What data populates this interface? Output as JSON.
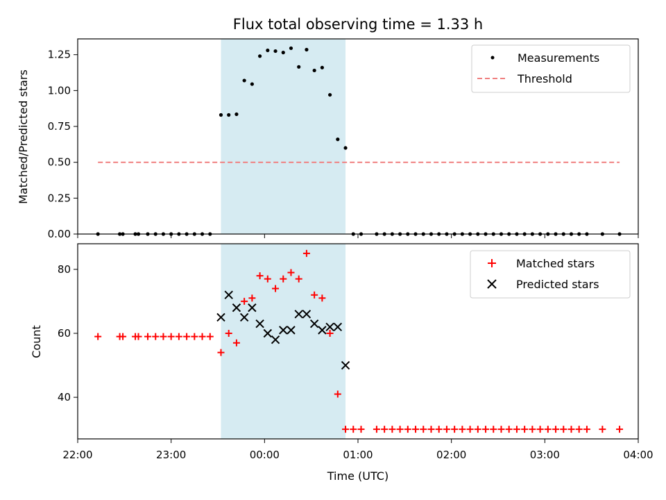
{
  "chart_data": [
    {
      "type": "scatter",
      "title": "Flux total observing time = 1.33 h",
      "xlabel": "",
      "ylabel": "Matched/Predicted stars",
      "xlim": [
        "22:00",
        "04:00"
      ],
      "ylim": [
        0,
        1.36
      ],
      "yticks": [
        "0.00",
        "0.25",
        "0.50",
        "0.75",
        "1.00",
        "1.25"
      ],
      "legend_position": "top-right",
      "highlight_span": {
        "start": "23:32",
        "end": "00:52",
        "color": "#add8e6"
      },
      "series": [
        {
          "name": "Measurements",
          "marker": "dot",
          "color": "#000000",
          "points": [
            [
              "22:13",
              0
            ],
            [
              "22:27",
              0
            ],
            [
              "22:29",
              0
            ],
            [
              "22:37",
              0
            ],
            [
              "22:39",
              0
            ],
            [
              "22:45",
              0
            ],
            [
              "22:50",
              0
            ],
            [
              "22:55",
              0
            ],
            [
              "23:00",
              0
            ],
            [
              "23:05",
              0
            ],
            [
              "23:10",
              0
            ],
            [
              "23:15",
              0
            ],
            [
              "23:20",
              0
            ],
            [
              "23:25",
              0
            ],
            [
              "23:32",
              0.83
            ],
            [
              "23:37",
              0.83
            ],
            [
              "23:42",
              0.835
            ],
            [
              "23:47",
              1.07
            ],
            [
              "23:52",
              1.045
            ],
            [
              "23:57",
              1.24
            ],
            [
              "00:02",
              1.28
            ],
            [
              "00:07",
              1.275
            ],
            [
              "00:12",
              1.265
            ],
            [
              "00:17",
              1.295
            ],
            [
              "00:22",
              1.165
            ],
            [
              "00:27",
              1.285
            ],
            [
              "00:32",
              1.14
            ],
            [
              "00:37",
              1.16
            ],
            [
              "00:42",
              0.97
            ],
            [
              "00:47",
              0.66
            ],
            [
              "00:52",
              0.6
            ],
            [
              "00:57",
              0
            ],
            [
              "01:02",
              0
            ],
            [
              "01:12",
              0
            ],
            [
              "01:17",
              0
            ],
            [
              "01:22",
              0
            ],
            [
              "01:27",
              0
            ],
            [
              "01:32",
              0
            ],
            [
              "01:37",
              0
            ],
            [
              "01:42",
              0
            ],
            [
              "01:47",
              0
            ],
            [
              "01:52",
              0
            ],
            [
              "01:57",
              0
            ],
            [
              "02:02",
              0
            ],
            [
              "02:07",
              0
            ],
            [
              "02:12",
              0
            ],
            [
              "02:17",
              0
            ],
            [
              "02:22",
              0
            ],
            [
              "02:27",
              0
            ],
            [
              "02:32",
              0
            ],
            [
              "02:37",
              0
            ],
            [
              "02:42",
              0
            ],
            [
              "02:47",
              0
            ],
            [
              "02:52",
              0
            ],
            [
              "02:57",
              0
            ],
            [
              "03:02",
              0
            ],
            [
              "03:07",
              0
            ],
            [
              "03:12",
              0
            ],
            [
              "03:17",
              0
            ],
            [
              "03:22",
              0
            ],
            [
              "03:27",
              0
            ],
            [
              "03:37",
              0
            ],
            [
              "03:48",
              0
            ]
          ]
        },
        {
          "name": "Threshold",
          "marker": "dashed-line",
          "color": "#f08080",
          "points": [
            [
              "22:13",
              0.5
            ],
            [
              "03:48",
              0.5
            ]
          ]
        }
      ]
    },
    {
      "type": "scatter",
      "title": "",
      "xlabel": "Time (UTC)",
      "ylabel": "Count",
      "xlim": [
        "22:00",
        "04:00"
      ],
      "ylim": [
        27,
        88
      ],
      "xticks": [
        "22:00",
        "23:00",
        "00:00",
        "01:00",
        "02:00",
        "03:00",
        "04:00"
      ],
      "yticks": [
        "40",
        "60",
        "80"
      ],
      "legend_position": "top-right",
      "highlight_span": {
        "start": "23:32",
        "end": "00:52",
        "color": "#add8e6"
      },
      "series": [
        {
          "name": "Matched stars",
          "marker": "plus",
          "color": "#ff0000",
          "points": [
            [
              "22:13",
              59
            ],
            [
              "22:27",
              59
            ],
            [
              "22:29",
              59
            ],
            [
              "22:37",
              59
            ],
            [
              "22:39",
              59
            ],
            [
              "22:45",
              59
            ],
            [
              "22:50",
              59
            ],
            [
              "22:55",
              59
            ],
            [
              "23:00",
              59
            ],
            [
              "23:05",
              59
            ],
            [
              "23:10",
              59
            ],
            [
              "23:15",
              59
            ],
            [
              "23:20",
              59
            ],
            [
              "23:25",
              59
            ],
            [
              "23:32",
              54
            ],
            [
              "23:37",
              60
            ],
            [
              "23:42",
              57
            ],
            [
              "23:47",
              70
            ],
            [
              "23:52",
              71
            ],
            [
              "23:57",
              78
            ],
            [
              "00:02",
              77
            ],
            [
              "00:07",
              74
            ],
            [
              "00:12",
              77
            ],
            [
              "00:17",
              79
            ],
            [
              "00:22",
              77
            ],
            [
              "00:27",
              85
            ],
            [
              "00:32",
              72
            ],
            [
              "00:37",
              71
            ],
            [
              "00:42",
              60
            ],
            [
              "00:47",
              41
            ],
            [
              "00:52",
              30
            ],
            [
              "00:57",
              30
            ],
            [
              "01:02",
              30
            ],
            [
              "01:12",
              30
            ],
            [
              "01:17",
              30
            ],
            [
              "01:22",
              30
            ],
            [
              "01:27",
              30
            ],
            [
              "01:32",
              30
            ],
            [
              "01:37",
              30
            ],
            [
              "01:42",
              30
            ],
            [
              "01:47",
              30
            ],
            [
              "01:52",
              30
            ],
            [
              "01:57",
              30
            ],
            [
              "02:02",
              30
            ],
            [
              "02:07",
              30
            ],
            [
              "02:12",
              30
            ],
            [
              "02:17",
              30
            ],
            [
              "02:22",
              30
            ],
            [
              "02:27",
              30
            ],
            [
              "02:32",
              30
            ],
            [
              "02:37",
              30
            ],
            [
              "02:42",
              30
            ],
            [
              "02:47",
              30
            ],
            [
              "02:52",
              30
            ],
            [
              "02:57",
              30
            ],
            [
              "03:02",
              30
            ],
            [
              "03:07",
              30
            ],
            [
              "03:12",
              30
            ],
            [
              "03:17",
              30
            ],
            [
              "03:22",
              30
            ],
            [
              "03:27",
              30
            ],
            [
              "03:37",
              30
            ],
            [
              "03:48",
              30
            ]
          ]
        },
        {
          "name": "Predicted stars",
          "marker": "x",
          "color": "#000000",
          "points": [
            [
              "23:32",
              65
            ],
            [
              "23:37",
              72
            ],
            [
              "23:42",
              68
            ],
            [
              "23:47",
              65
            ],
            [
              "23:52",
              68
            ],
            [
              "23:57",
              63
            ],
            [
              "00:02",
              60
            ],
            [
              "00:07",
              58
            ],
            [
              "00:12",
              61
            ],
            [
              "00:17",
              61
            ],
            [
              "00:22",
              66
            ],
            [
              "00:27",
              66
            ],
            [
              "00:32",
              63
            ],
            [
              "00:37",
              61
            ],
            [
              "00:42",
              62
            ],
            [
              "00:47",
              62
            ],
            [
              "00:52",
              50
            ]
          ]
        }
      ]
    }
  ]
}
